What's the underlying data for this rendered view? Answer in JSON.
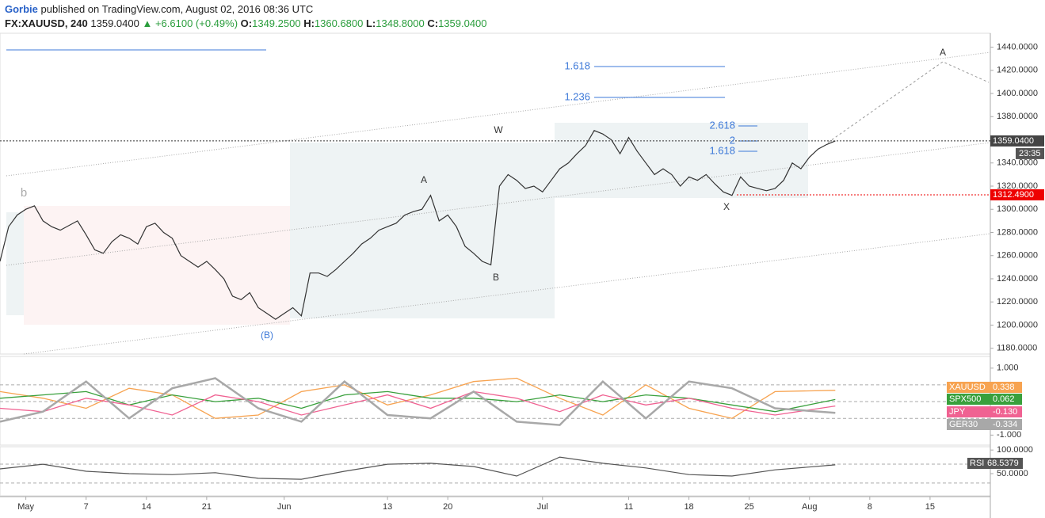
{
  "header": {
    "author": "Gorbie",
    "published": "published on TradingView.com, August 02, 2016 08:36 UTC",
    "symbol": "FX:XAUUSD, 240",
    "last": "1359.0400",
    "change": "+6.6100 (+0.49%)",
    "open_key": "O:",
    "open": "1349.2500",
    "high_key": "H:",
    "high": "1360.6800",
    "low_key": "L:",
    "low": "1348.8000",
    "close_key": "C:",
    "close": "1359.0400"
  },
  "chart_data": [
    {
      "type": "line",
      "color": "#333333",
      "x": [
        -3,
        -2,
        -1,
        0,
        1,
        2,
        3,
        4,
        6,
        7,
        8,
        9,
        10,
        11,
        12,
        13,
        14,
        15,
        16,
        17,
        18,
        19,
        20,
        21,
        22,
        23,
        24,
        25,
        26,
        27,
        28,
        29,
        30,
        31,
        32,
        33,
        34,
        35,
        36,
        37,
        38,
        39,
        40,
        41,
        42,
        43,
        44,
        45,
        46,
        47,
        48,
        49,
        50,
        51,
        52,
        53,
        54,
        55,
        56,
        57,
        58,
        59,
        60,
        61,
        62,
        63,
        64,
        65,
        66,
        67,
        68,
        69,
        70,
        71,
        72,
        73,
        74,
        75,
        76,
        77,
        78,
        79,
        80,
        81,
        82,
        83,
        84,
        85,
        86,
        87,
        88,
        89,
        90,
        91,
        92,
        93,
        94
      ],
      "values": [
        1255,
        1285,
        1295,
        1300,
        1303,
        1290,
        1285,
        1282,
        1290,
        1278,
        1265,
        1262,
        1272,
        1278,
        1275,
        1270,
        1285,
        1288,
        1280,
        1275,
        1260,
        1255,
        1250,
        1255,
        1248,
        1240,
        1225,
        1222,
        1228,
        1215,
        1210,
        1205,
        1210,
        1215,
        1208,
        1245,
        1245,
        1242,
        1248,
        1255,
        1262,
        1270,
        1275,
        1282,
        1285,
        1288,
        1295,
        1298,
        1300,
        1312,
        1290,
        1295,
        1285,
        1268,
        1262,
        1255,
        1252,
        1320,
        1330,
        1325,
        1318,
        1320,
        1315,
        1325,
        1335,
        1340,
        1348,
        1355,
        1368,
        1365,
        1360,
        1348,
        1362,
        1350,
        1340,
        1330,
        1335,
        1330,
        1320,
        1328,
        1325,
        1330,
        1322,
        1315,
        1312,
        1328,
        1320,
        1318,
        1316,
        1318,
        1325,
        1340,
        1335,
        1345,
        1352,
        1356,
        1359.04
      ],
      "last_label": "1359.0400",
      "countdown": "23:35",
      "support": {
        "value": 1312.49,
        "label": "1312.4900"
      },
      "xlim": [
        -3,
        112
      ],
      "xticks": [
        {
          "value": 0,
          "label": "May"
        },
        7,
        14,
        21,
        {
          "value": 30,
          "label": "Jun"
        },
        {
          "value": 42,
          "label": "13"
        },
        {
          "value": 49,
          "label": "20"
        },
        {
          "value": 60,
          "label": "Jul"
        },
        {
          "value": 70,
          "label": "11"
        },
        {
          "value": 77,
          "label": "18"
        },
        {
          "value": 84,
          "label": "25"
        },
        {
          "value": 91,
          "label": "Aug"
        },
        {
          "value": 98,
          "label": "8"
        },
        {
          "value": 105,
          "label": "15"
        }
      ],
      "ylim": [
        1175,
        1452
      ],
      "yticks": [
        {
          "value": 1180,
          "label": "1180.0000"
        },
        {
          "value": 1200,
          "label": "1200.0000"
        },
        {
          "value": 1220,
          "label": "1220.0000"
        },
        {
          "value": 1240,
          "label": "1240.0000"
        },
        {
          "value": 1260,
          "label": "1260.0000"
        },
        {
          "value": 1280,
          "label": "1280.0000"
        },
        {
          "value": 1300,
          "label": "1300.0000"
        },
        {
          "value": 1320,
          "label": "1320.0000"
        },
        {
          "value": 1340,
          "label": "1340.0000"
        },
        {
          "value": 1360,
          "label": "1360.0000"
        },
        {
          "value": 1380,
          "label": "1380.0000"
        },
        {
          "value": 1400,
          "label": "1400.0000"
        },
        {
          "value": 1420,
          "label": "1420.0000"
        },
        {
          "value": 1440,
          "label": "1440.0000"
        }
      ],
      "waves": [
        "b",
        "A",
        "W",
        "B",
        "X",
        "(B)",
        "A"
      ],
      "fibs": [
        "1.618",
        "1.236",
        "2.618",
        "2",
        "1.618"
      ]
    },
    {
      "type": "line",
      "x": [
        -3,
        2,
        7,
        12,
        17,
        22,
        27,
        32,
        37,
        42,
        47,
        52,
        57,
        62,
        67,
        72,
        77,
        82,
        87,
        94
      ],
      "series": [
        {
          "name": "XAUUSD",
          "color": "#f7a350",
          "value_label": "0.338",
          "values": [
            0.3,
            0.1,
            -0.2,
            0.4,
            0.2,
            -0.5,
            -0.4,
            0.3,
            0.5,
            -0.1,
            0.2,
            0.6,
            0.7,
            0.1,
            -0.4,
            0.5,
            -0.2,
            -0.5,
            0.3,
            0.338
          ]
        },
        {
          "name": "SPX500",
          "color": "#39a03c",
          "value_label": "0.062",
          "values": [
            0.1,
            0.2,
            0.3,
            -0.1,
            0.2,
            0.0,
            0.1,
            -0.2,
            0.2,
            0.3,
            0.1,
            0.1,
            0.0,
            0.2,
            0.0,
            0.2,
            0.1,
            -0.1,
            -0.3,
            0.062
          ]
        },
        {
          "name": "JPY",
          "color": "#f06292",
          "value_label": "-0.130",
          "values": [
            -0.2,
            -0.3,
            0.1,
            -0.1,
            -0.4,
            0.2,
            0.0,
            -0.4,
            -0.1,
            0.2,
            -0.2,
            0.3,
            0.1,
            -0.3,
            0.2,
            -0.1,
            0.1,
            -0.2,
            -0.4,
            -0.13
          ]
        },
        {
          "name": "GER30",
          "color": "#a8a8a8",
          "value_label": "-0.334",
          "values": [
            -0.6,
            -0.3,
            0.6,
            -0.5,
            0.4,
            0.7,
            -0.2,
            -0.6,
            0.6,
            -0.4,
            -0.5,
            0.3,
            -0.6,
            -0.7,
            0.6,
            -0.5,
            0.6,
            0.4,
            -0.2,
            -0.334
          ]
        }
      ],
      "levels": [
        0.5,
        0,
        -0.5
      ],
      "ylim": [
        -1.3,
        1.35
      ],
      "yticks": [
        {
          "value": 1,
          "label": "1.000"
        },
        {
          "value": -1,
          "label": "-1.000"
        }
      ]
    },
    {
      "type": "line",
      "name": "RSI",
      "color": "#555555",
      "value_label": "68.5379",
      "x": [
        -3,
        2,
        7,
        12,
        17,
        22,
        27,
        32,
        37,
        42,
        47,
        52,
        57,
        62,
        67,
        72,
        77,
        82,
        87,
        94
      ],
      "values": [
        60,
        70,
        55,
        50,
        48,
        52,
        40,
        38,
        55,
        70,
        72,
        65,
        45,
        85,
        72,
        62,
        48,
        45,
        58,
        68.5379
      ],
      "levels": [
        70,
        30
      ],
      "ylim": [
        3,
        107
      ],
      "yticks": [
        {
          "value": 100,
          "label": "100.0000"
        },
        {
          "value": 50,
          "label": "50.0000"
        }
      ]
    }
  ]
}
